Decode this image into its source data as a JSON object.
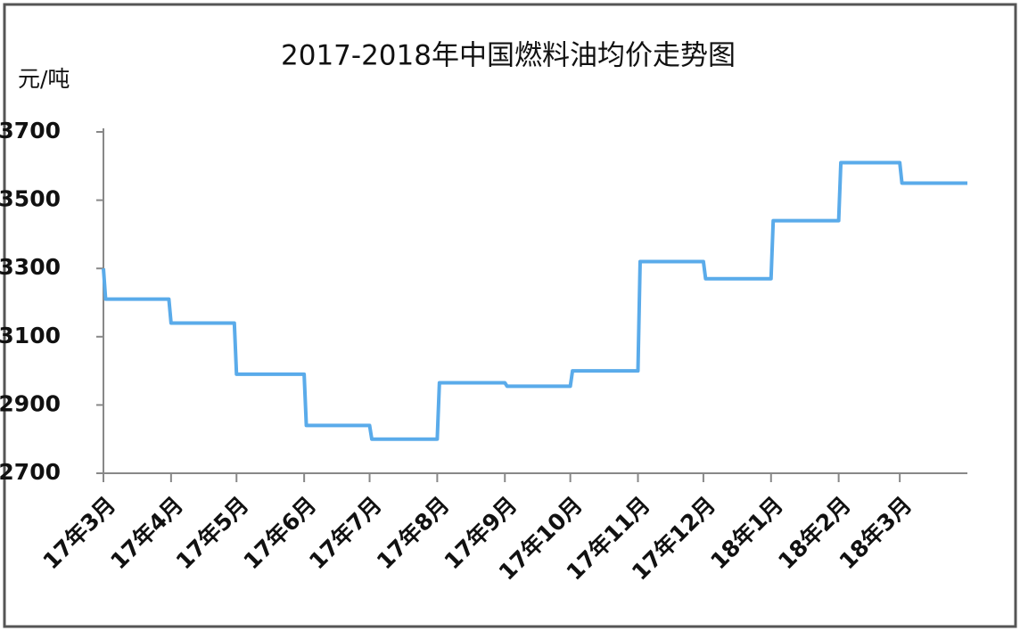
{
  "chart_data": {
    "type": "line",
    "title": "2017-2018年中国燃料油均价走势图",
    "ylabel": "元/吨",
    "color": "#5aabea",
    "x": [
      0,
      1,
      30,
      31,
      60,
      61,
      92,
      93,
      122,
      123,
      153,
      154,
      184,
      185,
      214,
      215,
      245,
      246,
      275,
      276,
      306,
      307,
      337,
      338,
      365,
      366,
      396
    ],
    "values": [
      3300,
      3210,
      3210,
      3140,
      3140,
      2990,
      2990,
      2840,
      2840,
      2800,
      2800,
      2965,
      2965,
      2955,
      2955,
      3000,
      3000,
      3320,
      3320,
      3270,
      3270,
      3440,
      3440,
      3610,
      3610,
      3550,
      3550
    ],
    "xlim": [
      0,
      396
    ],
    "xticks": [
      {
        "value": 0,
        "label": "17年3月"
      },
      {
        "value": 31,
        "label": "17年4月"
      },
      {
        "value": 61,
        "label": "17年5月"
      },
      {
        "value": 92,
        "label": "17年6月"
      },
      {
        "value": 122,
        "label": "17年7月"
      },
      {
        "value": 153,
        "label": "17年8月"
      },
      {
        "value": 184,
        "label": "17年9月"
      },
      {
        "value": 214,
        "label": "17年10月"
      },
      {
        "value": 245,
        "label": "17年11月"
      },
      {
        "value": 275,
        "label": "17年12月"
      },
      {
        "value": 306,
        "label": "18年1月"
      },
      {
        "value": 337,
        "label": "18年2月"
      },
      {
        "value": 365,
        "label": "18年3月"
      }
    ],
    "ylim": [
      2700,
      3700
    ],
    "yticks": [
      2700,
      2900,
      3100,
      3300,
      3500,
      3700
    ]
  }
}
